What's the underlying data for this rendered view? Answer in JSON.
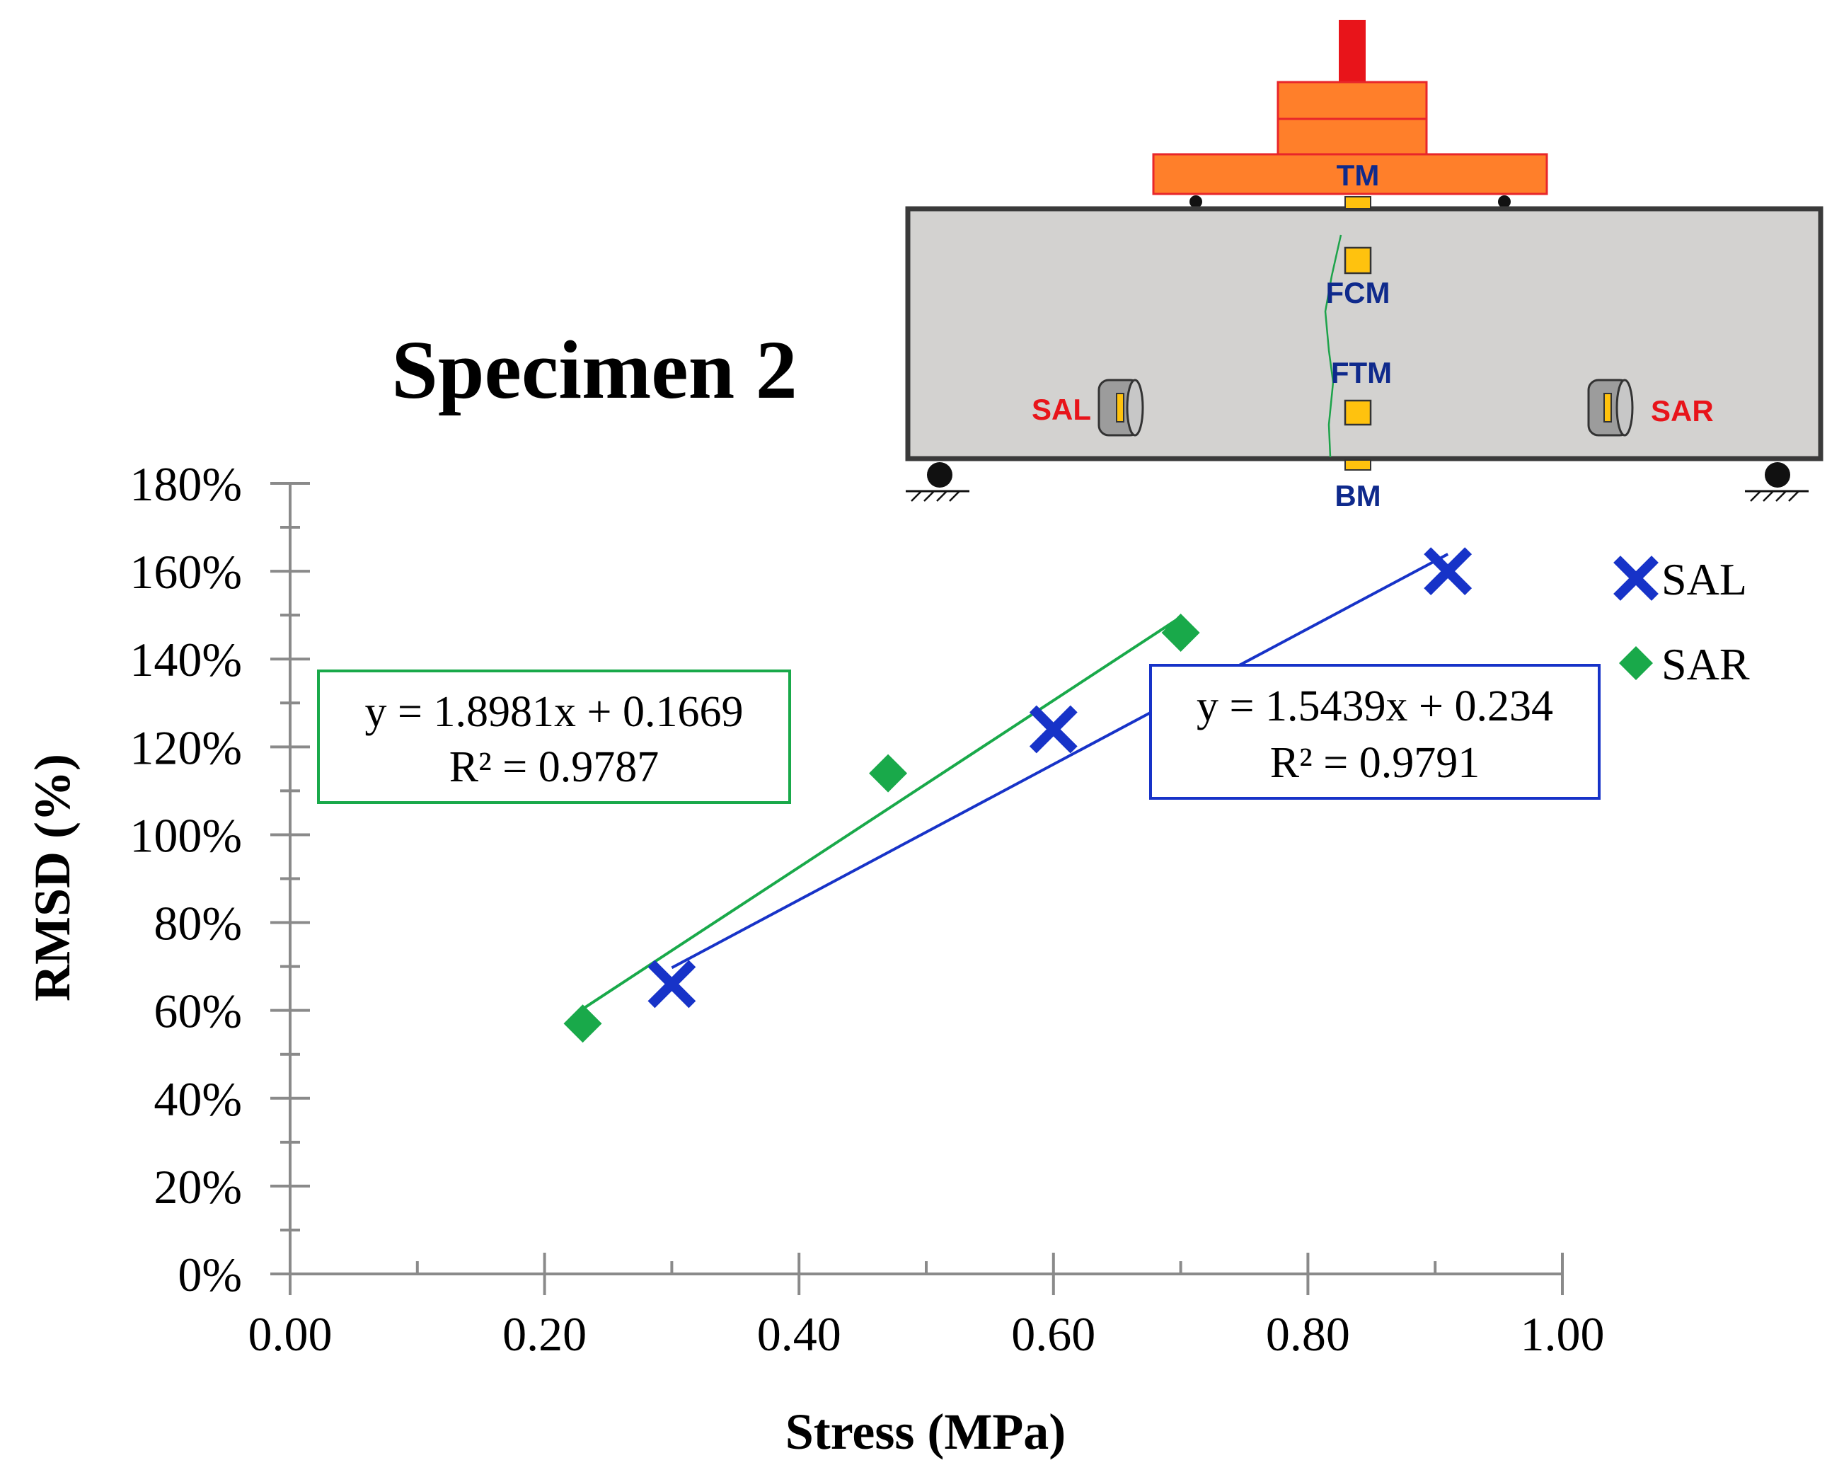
{
  "chart_data": {
    "type": "scatter",
    "title": "Specimen 2",
    "xlabel": "Stress (MPa)",
    "ylabel": "RMSD (%)",
    "xlim": [
      0,
      1
    ],
    "ylim": [
      0,
      1.8
    ],
    "x_ticks": [
      "0.00",
      "0.20",
      "0.40",
      "0.60",
      "0.80",
      "1.00"
    ],
    "y_ticks": [
      "0%",
      "20%",
      "40%",
      "60%",
      "80%",
      "100%",
      "120%",
      "140%",
      "160%",
      "180%"
    ],
    "series": [
      {
        "name": "SAL",
        "marker": "x",
        "color": "#1733C8",
        "x": [
          0.3,
          0.6,
          0.91
        ],
        "y": [
          0.66,
          1.24,
          1.6
        ],
        "trendline": {
          "slope": 1.5439,
          "intercept": 0.234,
          "x_range": [
            0.3,
            0.91
          ]
        },
        "equation": "y = 1.5439x + 0.234",
        "r2": "R² = 0.9791"
      },
      {
        "name": "SAR",
        "marker": "diamond",
        "color": "#19A94A",
        "x": [
          0.23,
          0.47,
          0.7
        ],
        "y": [
          0.57,
          1.14,
          1.46
        ],
        "trendline": {
          "slope": 1.8981,
          "intercept": 0.1669,
          "x_range": [
            0.23,
            0.7
          ]
        },
        "equation": "y = 1.8981x + 0.1669",
        "r2": "R² = 0.9787"
      }
    ],
    "legend": {
      "position": "right",
      "entries": [
        "SAL",
        "SAR"
      ]
    }
  },
  "diagram": {
    "labels": {
      "tm": "TM",
      "fcm": "FCM",
      "ftm": "FTM",
      "bm": "BM",
      "sal": "SAL",
      "sar": "SAR"
    },
    "colors": {
      "loading_frame": "#FF7F2A",
      "loading_edge": "#E8262A",
      "actuator": "#E8141A",
      "beam": "#D3D2D0",
      "beam_edge": "#3A3A3A",
      "sensor": "#FFC20E",
      "label_blue": "#0F2A8C",
      "label_red": "#E8141A",
      "crack": "#1DA34A"
    }
  }
}
